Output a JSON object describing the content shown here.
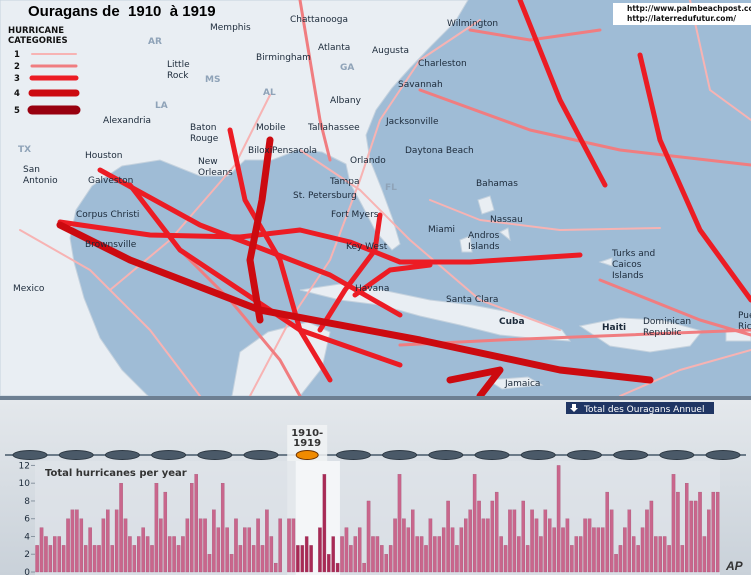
{
  "header": {
    "title": "Ouragans de  1910  à 1919",
    "urls": [
      "http://www.palmbeachpost.com",
      "http://laterredufutur.com/"
    ]
  },
  "legend": {
    "title": [
      "HURRICANE",
      "CATEGORIES"
    ],
    "items": [
      {
        "label": "1",
        "color": "#f7b3b3"
      },
      {
        "label": "2",
        "color": "#f07d80"
      },
      {
        "label": "3",
        "color": "#ec1c24"
      },
      {
        "label": "4",
        "color": "#cc0a10"
      },
      {
        "label": "5",
        "color": "#98000f"
      }
    ]
  },
  "map": {
    "places": [
      {
        "lines": [
          "Memphis"
        ]
      },
      {
        "lines": [
          "Chattanooga"
        ]
      },
      {
        "lines": [
          "Wilmington"
        ]
      },
      {
        "lines": [
          "Atlanta"
        ]
      },
      {
        "lines": [
          "Augusta"
        ]
      },
      {
        "lines": [
          "Little",
          "Rock"
        ]
      },
      {
        "lines": [
          "Birmingham"
        ]
      },
      {
        "lines": [
          "Charleston"
        ]
      },
      {
        "lines": [
          "Savannah"
        ]
      },
      {
        "lines": [
          "Albany"
        ]
      },
      {
        "lines": [
          "Alexandria"
        ]
      },
      {
        "lines": [
          "Baton",
          "Rouge"
        ]
      },
      {
        "lines": [
          "Mobile"
        ]
      },
      {
        "lines": [
          "Tallahassee"
        ]
      },
      {
        "lines": [
          "Jacksonville"
        ]
      },
      {
        "lines": [
          "Houston"
        ]
      },
      {
        "lines": [
          "Biloxi"
        ]
      },
      {
        "lines": [
          "Pensacola"
        ]
      },
      {
        "lines": [
          "New",
          "Orleans"
        ]
      },
      {
        "lines": [
          "Orlando"
        ]
      },
      {
        "lines": [
          "Daytona Beach"
        ]
      },
      {
        "lines": [
          "San",
          "Antonio"
        ]
      },
      {
        "lines": [
          "Galveston"
        ]
      },
      {
        "lines": [
          "Tampa"
        ]
      },
      {
        "lines": [
          "St. Petersburg"
        ]
      },
      {
        "lines": [
          "Bahamas"
        ]
      },
      {
        "lines": [
          "Corpus Christi"
        ]
      },
      {
        "lines": [
          "Fort Myers"
        ]
      },
      {
        "lines": [
          "Nassau"
        ]
      },
      {
        "lines": [
          "Miami"
        ]
      },
      {
        "lines": [
          "Key West"
        ]
      },
      {
        "lines": [
          "Andros",
          "Islands"
        ]
      },
      {
        "lines": [
          "Brownsville"
        ]
      },
      {
        "lines": [
          "Turks and",
          "Caicos",
          "Islands"
        ]
      },
      {
        "lines": [
          "Mexico"
        ]
      },
      {
        "lines": [
          "Havana"
        ]
      },
      {
        "lines": [
          "Santa Clara"
        ]
      },
      {
        "lines": [
          "Cuba"
        ]
      },
      {
        "lines": [
          "Haiti"
        ]
      },
      {
        "lines": [
          "Dominican",
          "Republic"
        ]
      },
      {
        "lines": [
          "Puerto",
          "Rico"
        ]
      },
      {
        "lines": [
          "Jamaica"
        ]
      }
    ],
    "states": [
      "AR",
      "MS",
      "AL",
      "GA",
      "LA",
      "TX",
      "FL"
    ]
  },
  "timeline": {
    "button": "Total des Ouragans Annuel",
    "selected": [
      "1910-",
      "1919"
    ]
  },
  "chart_data": {
    "type": "bar",
    "title": "Total hurricanes per year",
    "color": "#c9668c",
    "highlight_color": "#a82a55",
    "values": [
      3,
      5,
      4,
      3,
      4,
      4,
      3,
      6,
      7,
      7,
      6,
      3,
      5,
      3,
      3,
      6,
      7,
      3,
      7,
      10,
      6,
      4,
      3,
      4,
      5,
      4,
      3,
      10,
      6,
      9,
      4,
      4,
      3,
      4,
      6,
      10,
      11,
      6,
      6,
      2,
      7,
      5,
      10,
      5,
      2,
      6,
      3,
      5,
      5,
      3,
      6,
      3,
      7,
      4,
      1,
      6,
      0,
      6,
      6,
      3,
      3,
      4,
      3,
      0,
      5,
      11,
      2,
      4,
      1,
      4,
      5,
      3,
      4,
      5,
      1,
      8,
      4,
      4,
      3,
      2,
      3,
      6,
      11,
      6,
      5,
      7,
      4,
      4,
      3,
      6,
      4,
      4,
      5,
      8,
      5,
      3,
      5,
      6,
      7,
      11,
      8,
      6,
      6,
      8,
      9,
      4,
      3,
      7,
      7,
      4,
      8,
      3,
      7,
      6,
      4,
      7,
      6,
      5,
      12,
      5,
      6,
      3,
      4,
      4,
      6,
      6,
      5,
      5,
      5,
      9,
      7,
      2,
      3,
      5,
      7,
      4,
      3,
      5,
      7,
      8,
      4,
      4,
      4,
      3,
      11,
      9,
      3,
      10,
      8,
      8,
      9,
      4,
      7,
      9,
      9
    ],
    "ylim": [
      0,
      12.5
    ],
    "yticks": [
      0,
      2,
      4,
      6,
      8,
      10,
      12
    ]
  }
}
